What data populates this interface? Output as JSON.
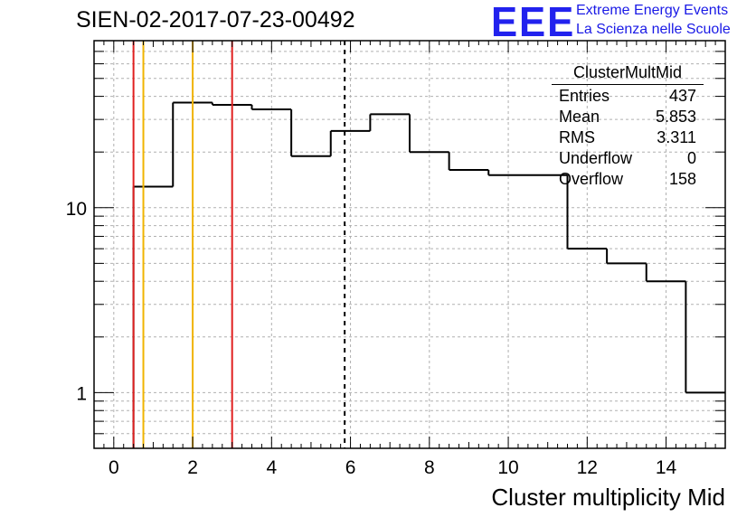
{
  "title": "SIEN-02-2017-07-23-00492",
  "logo": {
    "text": "EEE",
    "line1": "Extreme Energy Events",
    "line2": "La Scienza nelle Scuole",
    "color": "#2222ee"
  },
  "stats_box": {
    "title": "ClusterMultMid",
    "rows": [
      {
        "label": "Entries",
        "value": "437"
      },
      {
        "label": "Mean",
        "value": "5.853"
      },
      {
        "label": "RMS",
        "value": "3.311"
      },
      {
        "label": "Underflow",
        "value": "0"
      },
      {
        "label": "Overflow",
        "value": "158"
      }
    ]
  },
  "chart_data": {
    "type": "histogram",
    "xlabel": "Cluster multiplicity Mid",
    "ylabel": "",
    "xlim": [
      -0.5,
      15.5
    ],
    "ylim": [
      0.5,
      80
    ],
    "yscale": "log",
    "grid": true,
    "x_ticks": [
      0,
      2,
      4,
      6,
      8,
      10,
      12,
      14
    ],
    "y_ticks": [
      1,
      10
    ],
    "bins": [
      {
        "x0": 0.5,
        "x1": 1.5,
        "count": 13
      },
      {
        "x0": 1.5,
        "x1": 2.5,
        "count": 37
      },
      {
        "x0": 2.5,
        "x1": 3.5,
        "count": 36
      },
      {
        "x0": 3.5,
        "x1": 4.5,
        "count": 34
      },
      {
        "x0": 4.5,
        "x1": 5.5,
        "count": 19
      },
      {
        "x0": 5.5,
        "x1": 6.5,
        "count": 26
      },
      {
        "x0": 6.5,
        "x1": 7.5,
        "count": 32
      },
      {
        "x0": 7.5,
        "x1": 8.5,
        "count": 20
      },
      {
        "x0": 8.5,
        "x1": 9.5,
        "count": 16
      },
      {
        "x0": 9.5,
        "x1": 11.5,
        "count": 15
      },
      {
        "x0": 11.5,
        "x1": 12.5,
        "count": 6
      },
      {
        "x0": 12.5,
        "x1": 13.5,
        "count": 5
      },
      {
        "x0": 13.5,
        "x1": 14.5,
        "count": 4
      },
      {
        "x0": 14.5,
        "x1": 15.5,
        "count": 1
      }
    ],
    "markers": [
      {
        "x": 0.5,
        "color": "#e02020",
        "style": "solid"
      },
      {
        "x": 0.75,
        "color": "#f0b400",
        "style": "solid"
      },
      {
        "x": 2.0,
        "color": "#f0b400",
        "style": "solid"
      },
      {
        "x": 3.0,
        "color": "#e02020",
        "style": "solid"
      },
      {
        "x": 5.853,
        "color": "#000000",
        "style": "dashed"
      }
    ]
  }
}
